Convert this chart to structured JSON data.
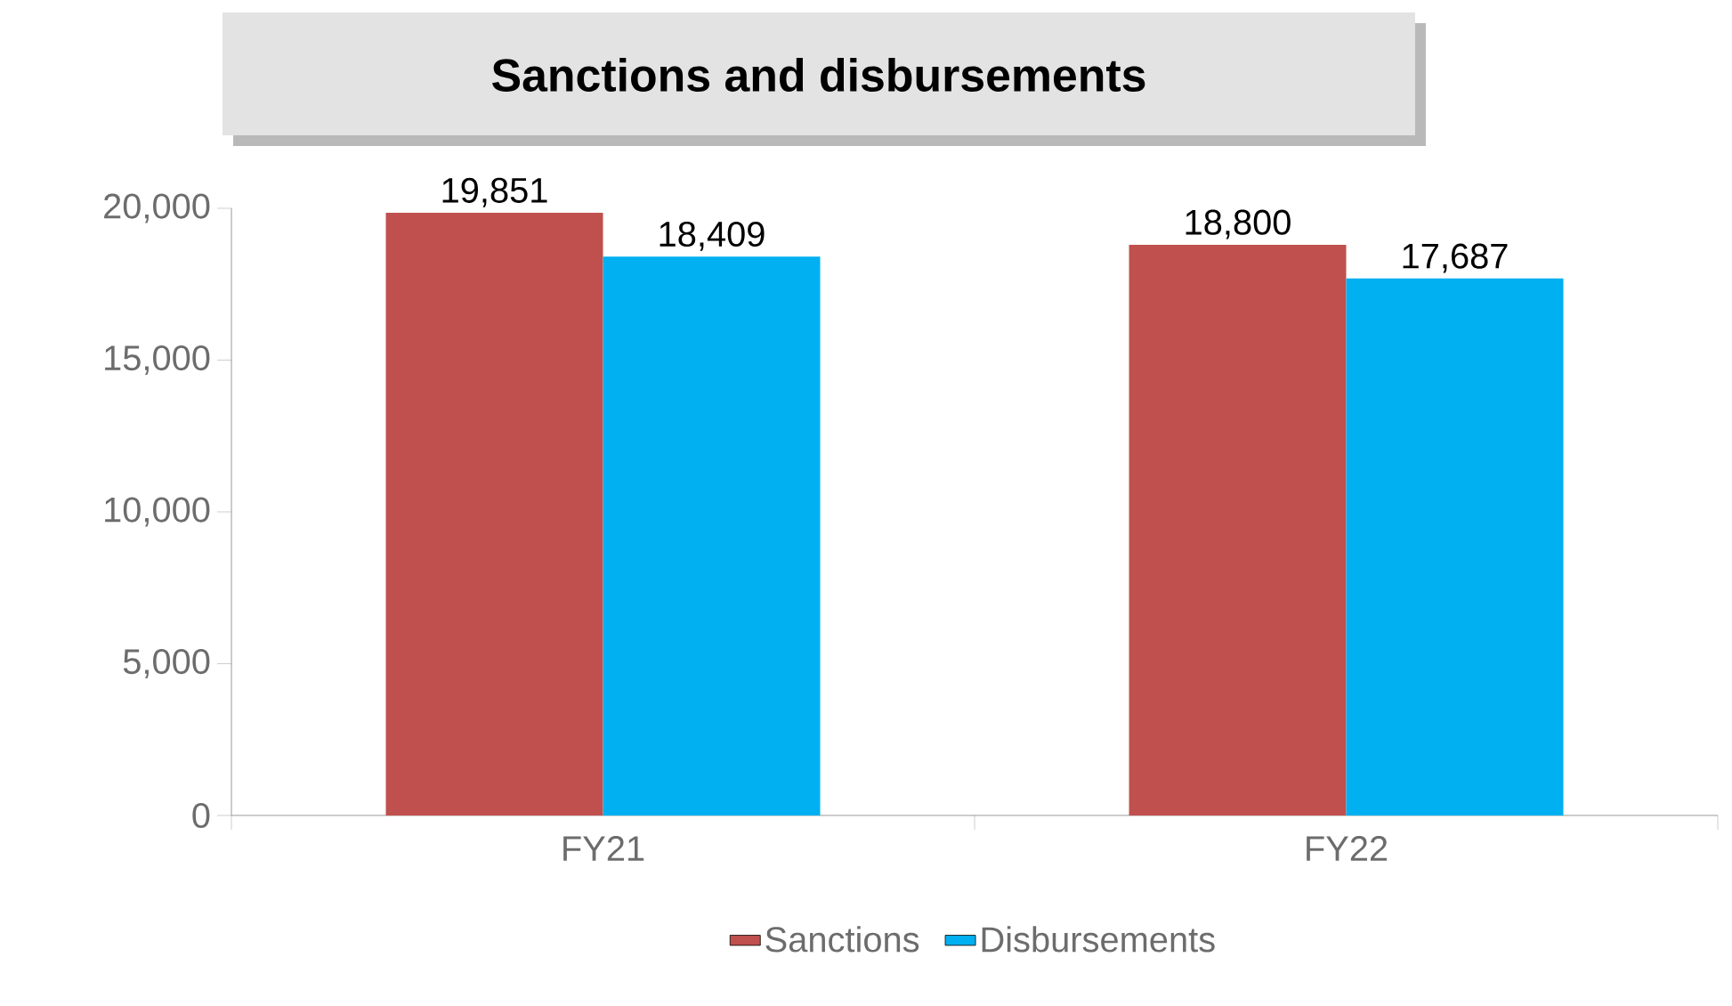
{
  "chart_data": {
    "type": "bar",
    "title": "Sanctions and disbursements",
    "categories": [
      "FY21",
      "FY22"
    ],
    "series": [
      {
        "name": "Sanctions",
        "color": "#c0504d",
        "values": [
          19851,
          18800
        ],
        "value_labels": [
          "19,851",
          "18,800"
        ]
      },
      {
        "name": "Disbursements",
        "color": "#00b0f0",
        "values": [
          18409,
          17687
        ],
        "value_labels": [
          "18,409",
          "17,687"
        ]
      }
    ],
    "ylim": [
      0,
      20000
    ],
    "yticks": [
      0,
      {
        "value": 5000,
        "label": "5,000"
      },
      {
        "value": 10000,
        "label": "10,000"
      },
      {
        "value": 15000,
        "label": "15,000"
      },
      {
        "value": 20000,
        "label": "20,000"
      }
    ],
    "grid": false,
    "legend": "bottom"
  }
}
